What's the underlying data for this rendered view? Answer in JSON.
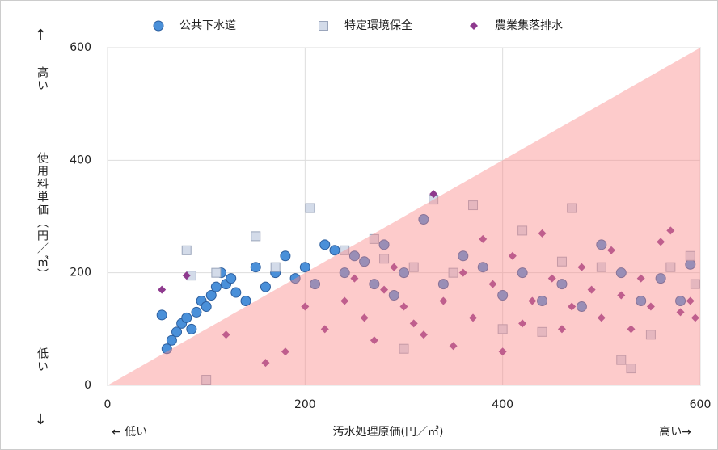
{
  "chart_data": {
    "type": "scatter",
    "xlabel": "汚水処理原価(円／㎥)",
    "ylabel": "使用料単価（円／㎥）",
    "annotations": [
      "↑",
      "高い",
      "低い",
      "↓",
      "← 低い",
      "高い→"
    ],
    "xlim": [
      0,
      600
    ],
    "xticks": [
      0,
      200,
      400,
      600
    ],
    "ylim": [
      0,
      600
    ],
    "yticks": [
      0,
      200,
      400,
      600
    ],
    "grid": true,
    "series": [
      {
        "name": "公共下水道",
        "color": "#4a90d9",
        "marker": "circle",
        "x": [
          55,
          60,
          65,
          70,
          75,
          80,
          85,
          90,
          95,
          100,
          105,
          110,
          115,
          120,
          125,
          130,
          140,
          150,
          160,
          170,
          180,
          190,
          200,
          210,
          220,
          230,
          240,
          250,
          260,
          270,
          280,
          290,
          300,
          320,
          340,
          360,
          380,
          400,
          420,
          440,
          460,
          480,
          500,
          520,
          540,
          560,
          580,
          590
        ],
        "values": [
          125,
          65,
          80,
          95,
          110,
          120,
          100,
          130,
          150,
          140,
          160,
          175,
          200,
          180,
          190,
          165,
          150,
          210,
          175,
          200,
          230,
          190,
          210,
          180,
          250,
          240,
          200,
          230,
          220,
          180,
          250,
          160,
          200,
          295,
          180,
          230,
          210,
          160,
          200,
          150,
          180,
          140,
          250,
          200,
          150,
          190,
          150,
          215
        ]
      },
      {
        "name": "特定環境保全",
        "color": "#d3dbe9",
        "marker": "square",
        "x": [
          80,
          85,
          100,
          110,
          150,
          170,
          205,
          240,
          270,
          280,
          300,
          310,
          330,
          350,
          370,
          400,
          420,
          440,
          460,
          470,
          500,
          520,
          530,
          550,
          570,
          590,
          595
        ],
        "values": [
          240,
          195,
          10,
          200,
          265,
          210,
          315,
          240,
          260,
          225,
          65,
          210,
          330,
          200,
          320,
          100,
          275,
          95,
          220,
          315,
          210,
          45,
          30,
          90,
          210,
          230,
          180
        ]
      },
      {
        "name": "農業集落排水",
        "color": "#8e3a8e",
        "marker": "diamond",
        "x": [
          55,
          80,
          120,
          160,
          180,
          200,
          220,
          240,
          250,
          260,
          270,
          280,
          290,
          300,
          310,
          320,
          330,
          340,
          350,
          360,
          370,
          380,
          390,
          400,
          410,
          420,
          430,
          440,
          450,
          460,
          470,
          480,
          490,
          500,
          510,
          520,
          530,
          540,
          550,
          560,
          570,
          580,
          590,
          595
        ],
        "values": [
          170,
          195,
          90,
          40,
          60,
          140,
          100,
          150,
          190,
          120,
          80,
          170,
          210,
          140,
          110,
          90,
          340,
          150,
          70,
          200,
          120,
          260,
          180,
          60,
          230,
          110,
          150,
          270,
          190,
          100,
          140,
          210,
          170,
          120,
          240,
          160,
          100,
          190,
          140,
          255,
          275,
          130,
          150,
          120
        ]
      }
    ]
  }
}
